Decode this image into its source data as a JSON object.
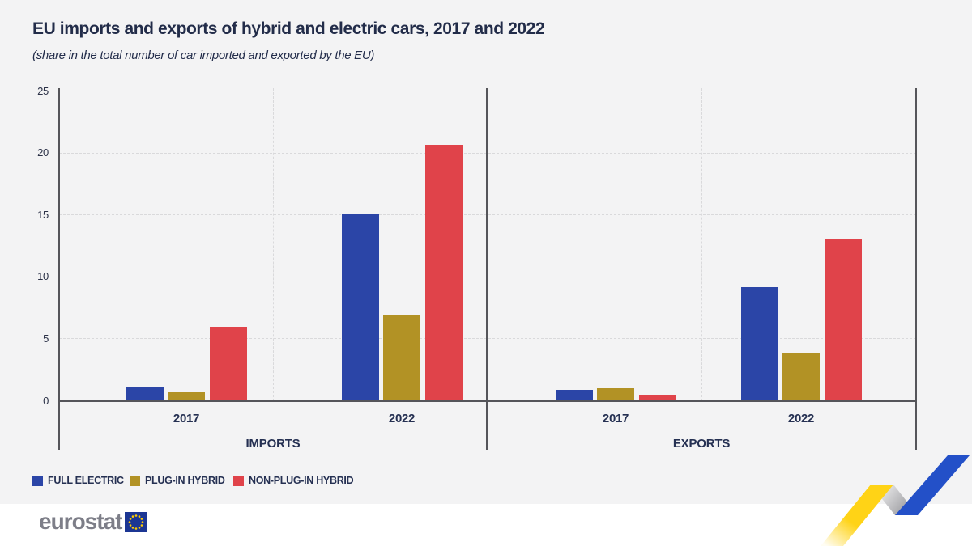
{
  "page": {
    "title": "EU imports and exports of hybrid and electric cars, 2017 and 2022",
    "subtitle": "(share in the total number of car imported and exported by the EU)"
  },
  "chart_data": {
    "type": "bar",
    "title": "EU imports and exports of hybrid and electric cars, 2017 and 2022",
    "subtitle": "(share in the total number of car imported and exported by the EU)",
    "unit": "% share of total cars imported / exported by the EU",
    "ylim": [
      0,
      25
    ],
    "yticks": [
      0,
      5,
      10,
      15,
      20,
      25
    ],
    "grid": "dashed horizontal gridlines at ticks; dashed vertical separator at each panel centre; solid borders left, middle and right",
    "legend_position": "bottom-left",
    "panels": [
      "IMPORTS",
      "EXPORTS"
    ],
    "categories": [
      "IMPORTS 2017",
      "IMPORTS 2022",
      "EXPORTS 2017",
      "EXPORTS 2022"
    ],
    "group_labels": [
      "2017",
      "2022",
      "2017",
      "2022"
    ],
    "series": [
      {
        "name": "FULL ELECTRIC",
        "color": "#2b45a7",
        "values": [
          1.1,
          15.1,
          0.9,
          9.2
        ]
      },
      {
        "name": "PLUG-IN HYBRID",
        "color": "#b29225",
        "values": [
          0.7,
          6.9,
          1.0,
          3.9
        ]
      },
      {
        "name": "NON-PLUG-IN HYBRID",
        "color": "#e0434a",
        "values": [
          6.0,
          20.7,
          0.5,
          13.1
        ]
      }
    ]
  },
  "legend": {
    "items": [
      {
        "label": "FULL ELECTRIC",
        "color": "#2b45a7"
      },
      {
        "label": "PLUG-IN HYBRID",
        "color": "#b29225"
      },
      {
        "label": "NON-PLUG-IN HYBRID",
        "color": "#e0434a"
      }
    ]
  },
  "footer": {
    "logo_text": "eurostat"
  },
  "colors": {
    "background": "#f3f3f4",
    "footer_background": "#ffffff",
    "text_dark": "#232d4b",
    "axis_line": "#55555a",
    "gridline": "#d9d9db",
    "bar_blue": "#2b45a7",
    "bar_gold": "#b29225",
    "bar_red": "#e0434a",
    "ribbon_yellow": "#ffd316",
    "ribbon_blue": "#2350c8",
    "eu_flag_blue": "#1c3693",
    "eu_star_yellow": "#ffcc00",
    "logo_gray": "#7d7e88"
  }
}
